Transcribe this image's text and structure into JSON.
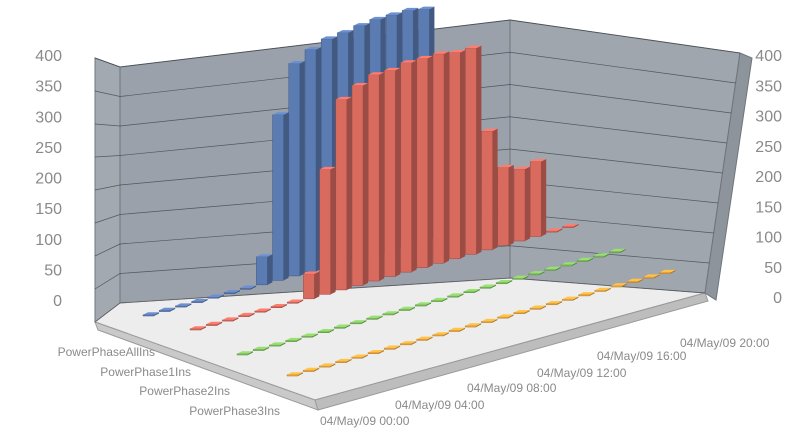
{
  "chart_data": {
    "type": "bar",
    "three_d": true,
    "y_axis": {
      "ticks": [
        "400",
        "350",
        "300",
        "250",
        "200",
        "150",
        "100",
        "50",
        "0"
      ],
      "ylim": [
        0,
        400
      ]
    },
    "x_tick_labels": [
      "04/May/09 00:00",
      "04/May/09 04:00",
      "04/May/09 08:00",
      "04/May/09 12:00",
      "04/May/09 16:00",
      "04/May/09 20:00"
    ],
    "grid": true,
    "series": [
      {
        "name": "PowerPhaseAllIns",
        "color": "#5b7bb3",
        "values": [
          2,
          2,
          2,
          2,
          2,
          2,
          2,
          45,
          265,
          340,
          355,
          365,
          368,
          372,
          375,
          375,
          375,
          370,
          0,
          0,
          0,
          0,
          0,
          0
        ]
      },
      {
        "name": "PowerPhase1Ins",
        "color": "#d96a5e",
        "values": [
          2,
          2,
          2,
          2,
          2,
          2,
          2,
          40,
          200,
          305,
          320,
          330,
          330,
          335,
          335,
          335,
          330,
          330,
          190,
          125,
          115,
          120,
          2,
          2
        ]
      },
      {
        "name": "PowerPhase2Ins",
        "color": "#7fbf5f",
        "values": [
          2,
          2,
          2,
          2,
          2,
          2,
          2,
          2,
          2,
          2,
          2,
          2,
          2,
          2,
          2,
          2,
          2,
          2,
          2,
          2,
          2,
          2,
          2,
          2
        ]
      },
      {
        "name": "PowerPhase3Ins",
        "color": "#f5a63c",
        "values": [
          2,
          2,
          2,
          2,
          2,
          2,
          2,
          2,
          2,
          2,
          2,
          2,
          2,
          2,
          2,
          2,
          2,
          2,
          2,
          2,
          2,
          2,
          2,
          2
        ]
      }
    ]
  }
}
